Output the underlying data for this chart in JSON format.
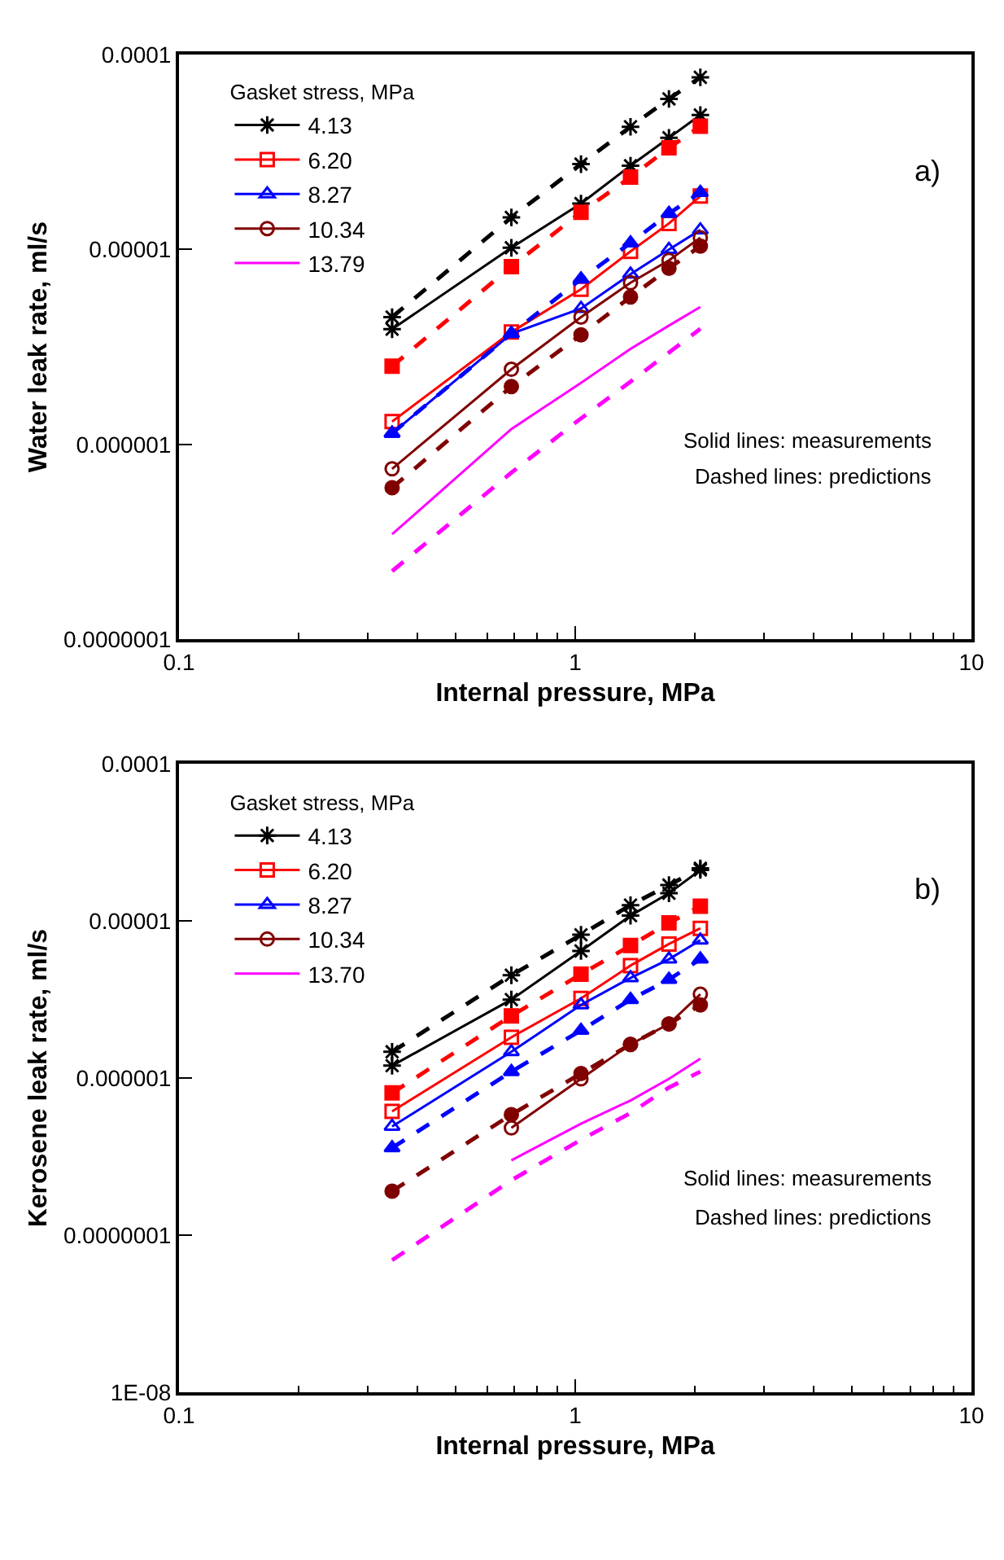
{
  "chart_data": [
    {
      "type": "line",
      "xlabel": "Internal pressure, MPa",
      "ylabel": "Water leak rate, ml/s",
      "legend_title": "Gasket stress, MPa",
      "legend": "top left",
      "log": "xy",
      "grid": false,
      "x": [
        0.345,
        0.69,
        1.034,
        1.379,
        1.724,
        2.069
      ],
      "xlim": [
        0.1,
        10
      ],
      "xticks": [
        0.1,
        1,
        10
      ],
      "ylim": [
        1e-07,
        0.0001
      ],
      "yticks": [
        {
          "value": 1e-07,
          "label": "0.0000001"
        },
        {
          "value": 1e-06,
          "label": "0.000001"
        },
        {
          "value": 1e-05,
          "label": "0.00001"
        },
        {
          "value": 0.0001,
          "label": "0.0001"
        }
      ],
      "annotations": [
        "a)",
        "Solid lines: measurements",
        "Dashed lines: predictions"
      ],
      "series": [
        {
          "name": "4.13",
          "color": "#000000",
          "line_style": "solid",
          "marker": "cross",
          "values": [
            3.9e-06,
            1.02e-05,
            1.72e-05,
            2.69e-05,
            3.74e-05,
            4.89e-05
          ]
        },
        {
          "name": "6.20",
          "color": "#ff0000",
          "line_style": "solid",
          "marker": "square",
          "values": [
            1.31e-06,
            3.77e-06,
            6.25e-06,
            9.77e-06,
            1.36e-05,
            1.88e-05
          ]
        },
        {
          "name": "8.27",
          "color": "#0000ff",
          "line_style": "solid",
          "marker": "triangle",
          "values": [
            1.14e-06,
            3.7e-06,
            4.98e-06,
            7.47e-06,
            1e-05,
            1.26e-05
          ]
        },
        {
          "name": "10.34",
          "color": "#800000",
          "line_style": "solid",
          "marker": "circle",
          "values": [
            7.5e-07,
            2.43e-06,
            4.5e-06,
            6.75e-06,
            8.8e-06,
            1.15e-05
          ]
        },
        {
          "name": "13.79",
          "color": "#ff00ff",
          "line_style": "solid",
          "marker": "none",
          "values": [
            3.46e-07,
            1.2e-06,
            2.07e-06,
            3.09e-06,
            4.07e-06,
            5.07e-06
          ]
        },
        {
          "color": "#000000",
          "line_style": "dashed",
          "marker": "cross",
          "values": [
            4.5e-06,
            1.46e-05,
            2.74e-05,
            4.26e-05,
            5.92e-05,
            7.64e-05
          ]
        },
        {
          "color": "#ff0000",
          "line_style": "dashed",
          "marker": "square",
          "values": [
            2.52e-06,
            8.17e-06,
            1.55e-05,
            2.35e-05,
            3.32e-05,
            4.29e-05
          ]
        },
        {
          "color": "#0000ff",
          "line_style": "dashed",
          "marker": "triangle",
          "values": [
            1.14e-06,
            3.7e-06,
            7.05e-06,
            1.08e-05,
            1.53e-05,
            1.96e-05
          ]
        },
        {
          "color": "#800000",
          "line_style": "dashed",
          "marker": "circle",
          "values": [
            6e-07,
            1.98e-06,
            3.65e-06,
            5.71e-06,
            8e-06,
            1.04e-05
          ]
        },
        {
          "color": "#ff00ff",
          "line_style": "dashed",
          "marker": "none",
          "values": [
            2.24e-07,
            7.17e-07,
            1.36e-06,
            2.1e-06,
            2.96e-06,
            3.92e-06
          ]
        }
      ]
    },
    {
      "type": "line",
      "xlabel": "Internal pressure, MPa",
      "ylabel": "Kerosene leak rate, ml/s",
      "legend_title": "Gasket stress, MPa",
      "legend": "top left",
      "log": "xy",
      "grid": false,
      "x": [
        0.345,
        0.69,
        1.034,
        1.379,
        1.724,
        2.069
      ],
      "xlim": [
        0.1,
        10
      ],
      "xticks": [
        0.1,
        1,
        10
      ],
      "ylim": [
        1e-08,
        0.0001
      ],
      "yticks": [
        {
          "value": 1e-08,
          "label": "1E-08"
        },
        {
          "value": 1e-07,
          "label": "0.0000001"
        },
        {
          "value": 1e-06,
          "label": "0.000001"
        },
        {
          "value": 1e-05,
          "label": "0.00001"
        },
        {
          "value": 0.0001,
          "label": "0.0001"
        }
      ],
      "annotations": [
        "b)",
        "Solid lines: measurements",
        "Dashed lines: predictions"
      ],
      "series": [
        {
          "name": "4.13",
          "color": "#000000",
          "line_style": "solid",
          "marker": "cross",
          "values": [
            1.2e-06,
            3.16e-06,
            6.44e-06,
            1.08e-05,
            1.5e-05,
            2.11e-05
          ]
        },
        {
          "name": "6.20",
          "color": "#ff0000",
          "line_style": "solid",
          "marker": "square",
          "values": [
            6.15e-07,
            1.82e-06,
            3.21e-06,
            5.2e-06,
            7.13e-06,
            8.97e-06
          ]
        },
        {
          "name": "8.27",
          "color": "#0000ff",
          "line_style": "solid",
          "marker": "triangle",
          "values": [
            4.93e-07,
            1.47e-06,
            2.92e-06,
            4.34e-06,
            5.71e-06,
            7.54e-06
          ]
        },
        {
          "name": "10.34",
          "color": "#800000",
          "line_style": "solid",
          "marker": "circle",
          "values": [
            null,
            4.82e-07,
            9.89e-07,
            1.64e-06,
            2.21e-06,
            3.42e-06
          ]
        },
        {
          "name": "13.70",
          "color": "#ff00ff",
          "line_style": "solid",
          "marker": "none",
          "values": [
            null,
            3e-07,
            5.13e-07,
            7.21e-07,
            9.89e-07,
            1.33e-06
          ]
        },
        {
          "color": "#000000",
          "line_style": "dashed",
          "marker": "cross",
          "values": [
            1.47e-06,
            4.51e-06,
            8.16e-06,
            1.26e-05,
            1.69e-05,
            2.16e-05
          ]
        },
        {
          "color": "#ff0000",
          "line_style": "dashed",
          "marker": "square",
          "values": [
            8.05e-07,
            2.49e-06,
            4.58e-06,
            6.97e-06,
            9.7e-06,
            1.24e-05
          ]
        },
        {
          "color": "#0000ff",
          "line_style": "dashed",
          "marker": "triangle",
          "values": [
            3.6e-07,
            1.1e-06,
            2.01e-06,
            3.16e-06,
            4.24e-06,
            5.71e-06
          ]
        },
        {
          "color": "#800000",
          "line_style": "dashed",
          "marker": "circle",
          "values": [
            1.91e-07,
            5.86e-07,
            1.07e-06,
            1.64e-06,
            2.21e-06,
            2.92e-06
          ]
        },
        {
          "color": "#ff00ff",
          "line_style": "dashed",
          "marker": "none",
          "values": [
            6.95e-08,
            2.24e-07,
            4.05e-07,
            6e-07,
            8.71e-07,
            1.1e-06
          ]
        }
      ]
    }
  ]
}
